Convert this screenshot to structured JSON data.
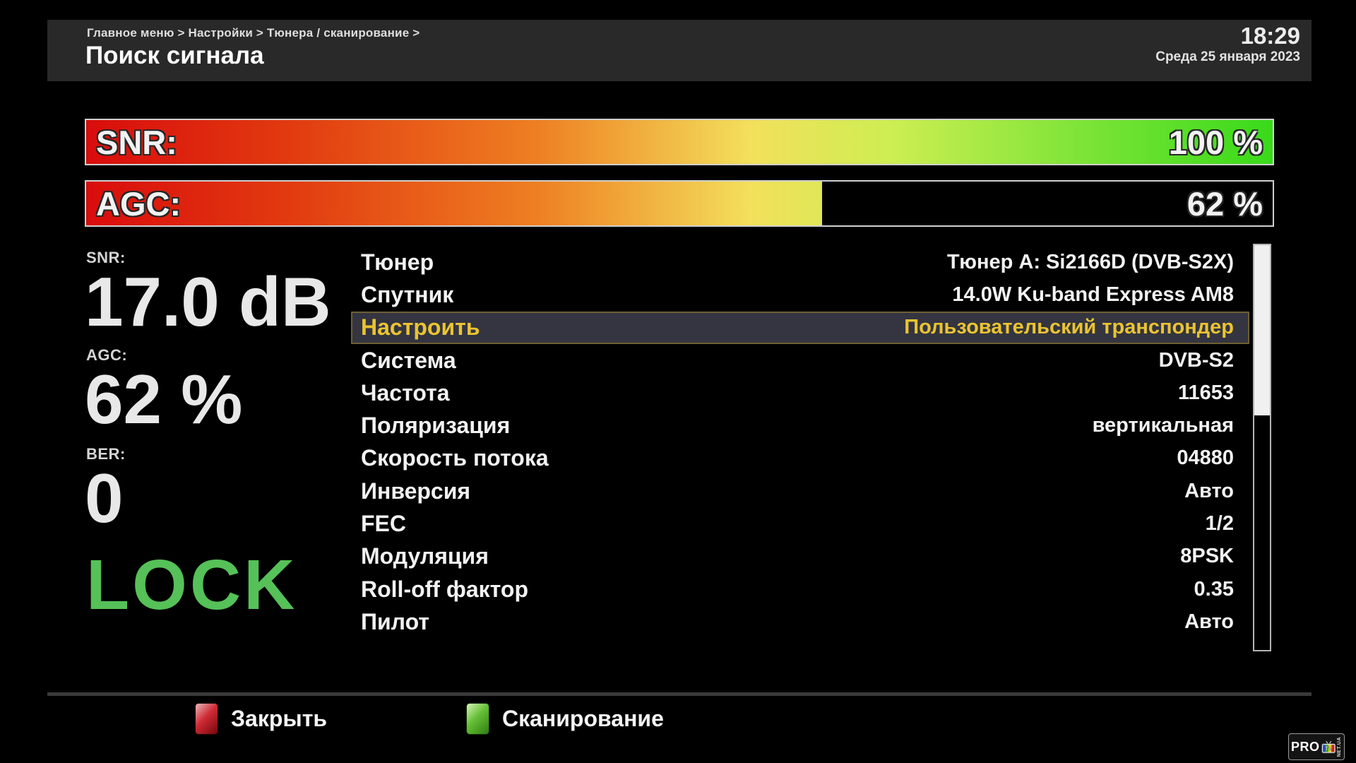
{
  "header": {
    "breadcrumb": "Главное меню > Настройки > Тюнера / сканирование >",
    "title": "Поиск сигнала",
    "time": "18:29",
    "date": "Среда 25 января 2023"
  },
  "bars": {
    "snr": {
      "label": "SNR:",
      "value": "100 %",
      "percent": 100
    },
    "agc": {
      "label": "AGC:",
      "value": "62 %",
      "percent": 62
    }
  },
  "signal": {
    "snr_label": "SNR:",
    "snr_value": "17.0 dB",
    "agc_label": "AGC:",
    "agc_value": "62 %",
    "ber_label": "BER:",
    "ber_value": "0",
    "lock": "LOCK"
  },
  "settings": {
    "selected_index": 2,
    "items": [
      {
        "label": "Тюнер",
        "value": "Тюнер A: Si2166D (DVB-S2X)"
      },
      {
        "label": "Спутник",
        "value": "14.0W Ku-band Express AM8"
      },
      {
        "label": "Настроить",
        "value": "Пользовательский транспондер"
      },
      {
        "label": "Система",
        "value": "DVB-S2"
      },
      {
        "label": "Частота",
        "value": "11653"
      },
      {
        "label": "Поляризация",
        "value": "вертикальная"
      },
      {
        "label": "Скорость потока",
        "value": "04880"
      },
      {
        "label": "Инверсия",
        "value": "Авто"
      },
      {
        "label": "FEC",
        "value": "1/2"
      },
      {
        "label": "Модуляция",
        "value": "8PSK"
      },
      {
        "label": "Roll-off фактор",
        "value": "0.35"
      },
      {
        "label": "Пилот",
        "value": "Авто"
      }
    ]
  },
  "scrollbar": {
    "thumb_percent": 42
  },
  "footer": {
    "close": "Закрыть",
    "scan": "Сканирование"
  },
  "logo": {
    "pro": "PRO",
    "tv": "TV",
    "net": "NET.UA"
  },
  "colors": {
    "lock_green": "#55c158",
    "highlight_text": "#eac431",
    "highlight_bg": "#343541",
    "bar_red": "#d90c0c",
    "bar_green": "#38da1a",
    "key_red": "#cf2b34",
    "key_green": "#64bf35",
    "header_bg": "#292929"
  }
}
